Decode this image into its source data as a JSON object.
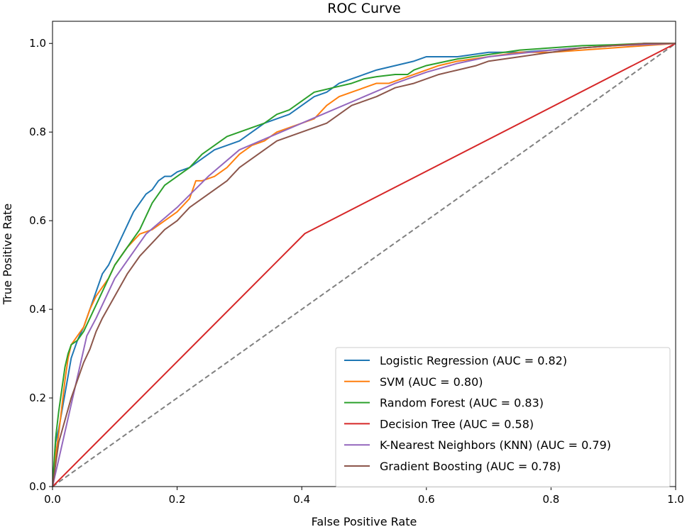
{
  "chart_data": {
    "type": "line",
    "title": "ROC Curve",
    "xlabel": "False Positive Rate",
    "ylabel": "True Positive Rate",
    "xlim": [
      0.0,
      1.0
    ],
    "ylim": [
      0.0,
      1.0
    ],
    "xticks": [
      "0.0",
      "0.2",
      "0.4",
      "0.6",
      "0.8",
      "1.0"
    ],
    "yticks": [
      "0.0",
      "0.2",
      "0.4",
      "0.6",
      "0.8",
      "1.0"
    ],
    "grid": false,
    "legend_position": "bottom-right",
    "series": [
      {
        "name": "Logistic Regression (AUC = 0.82)",
        "color": "#1f77b4",
        "dash": "solid",
        "x": [
          0.0,
          0.005,
          0.01,
          0.015,
          0.02,
          0.025,
          0.03,
          0.035,
          0.04,
          0.05,
          0.06,
          0.07,
          0.08,
          0.09,
          0.1,
          0.11,
          0.12,
          0.13,
          0.14,
          0.15,
          0.16,
          0.17,
          0.18,
          0.19,
          0.2,
          0.22,
          0.24,
          0.26,
          0.28,
          0.3,
          0.32,
          0.34,
          0.36,
          0.38,
          0.4,
          0.42,
          0.44,
          0.46,
          0.48,
          0.5,
          0.52,
          0.55,
          0.58,
          0.6,
          0.62,
          0.65,
          0.7,
          0.75,
          0.8,
          0.85,
          0.9,
          0.95,
          1.0
        ],
        "y": [
          0.0,
          0.1,
          0.13,
          0.17,
          0.21,
          0.25,
          0.29,
          0.31,
          0.33,
          0.36,
          0.4,
          0.44,
          0.48,
          0.5,
          0.53,
          0.56,
          0.59,
          0.62,
          0.64,
          0.66,
          0.67,
          0.69,
          0.7,
          0.7,
          0.71,
          0.72,
          0.74,
          0.76,
          0.77,
          0.78,
          0.8,
          0.82,
          0.83,
          0.84,
          0.86,
          0.88,
          0.89,
          0.91,
          0.92,
          0.93,
          0.94,
          0.95,
          0.96,
          0.97,
          0.97,
          0.97,
          0.98,
          0.98,
          0.985,
          0.99,
          0.995,
          1.0,
          1.0
        ]
      },
      {
        "name": "SVM (AUC = 0.80)",
        "color": "#ff7f0e",
        "dash": "solid",
        "x": [
          0.0,
          0.005,
          0.01,
          0.015,
          0.02,
          0.025,
          0.03,
          0.04,
          0.05,
          0.06,
          0.07,
          0.08,
          0.09,
          0.1,
          0.12,
          0.14,
          0.16,
          0.18,
          0.2,
          0.22,
          0.23,
          0.24,
          0.26,
          0.28,
          0.3,
          0.32,
          0.34,
          0.36,
          0.38,
          0.4,
          0.42,
          0.44,
          0.46,
          0.48,
          0.5,
          0.52,
          0.54,
          0.56,
          0.58,
          0.6,
          0.62,
          0.65,
          0.7,
          0.75,
          0.8,
          0.85,
          0.9,
          0.95,
          1.0
        ],
        "y": [
          0.0,
          0.07,
          0.12,
          0.18,
          0.24,
          0.29,
          0.32,
          0.34,
          0.36,
          0.4,
          0.43,
          0.45,
          0.47,
          0.5,
          0.54,
          0.57,
          0.58,
          0.6,
          0.62,
          0.65,
          0.69,
          0.69,
          0.7,
          0.72,
          0.75,
          0.77,
          0.78,
          0.8,
          0.81,
          0.82,
          0.83,
          0.86,
          0.88,
          0.89,
          0.9,
          0.91,
          0.91,
          0.92,
          0.93,
          0.94,
          0.95,
          0.96,
          0.97,
          0.98,
          0.98,
          0.985,
          0.99,
          0.995,
          1.0
        ]
      },
      {
        "name": "Random Forest (AUC = 0.83)",
        "color": "#2ca02c",
        "dash": "solid",
        "x": [
          0.0,
          0.005,
          0.01,
          0.015,
          0.02,
          0.025,
          0.03,
          0.04,
          0.05,
          0.06,
          0.07,
          0.08,
          0.1,
          0.12,
          0.14,
          0.16,
          0.18,
          0.2,
          0.22,
          0.24,
          0.26,
          0.28,
          0.3,
          0.32,
          0.34,
          0.36,
          0.38,
          0.4,
          0.42,
          0.45,
          0.48,
          0.5,
          0.52,
          0.55,
          0.57,
          0.58,
          0.6,
          0.65,
          0.7,
          0.75,
          0.8,
          0.85,
          0.9,
          0.95,
          1.0
        ],
        "y": [
          0.0,
          0.11,
          0.17,
          0.22,
          0.27,
          0.3,
          0.32,
          0.33,
          0.35,
          0.38,
          0.41,
          0.44,
          0.5,
          0.54,
          0.58,
          0.64,
          0.68,
          0.7,
          0.72,
          0.75,
          0.77,
          0.79,
          0.8,
          0.81,
          0.82,
          0.84,
          0.85,
          0.87,
          0.89,
          0.9,
          0.91,
          0.92,
          0.925,
          0.93,
          0.93,
          0.94,
          0.95,
          0.965,
          0.975,
          0.985,
          0.99,
          0.995,
          0.997,
          1.0,
          1.0
        ]
      },
      {
        "name": "Decision Tree (AUC = 0.58)",
        "color": "#d62728",
        "dash": "solid",
        "x": [
          0.0,
          0.405,
          1.0
        ],
        "y": [
          0.0,
          0.571,
          1.0
        ]
      },
      {
        "name": "K-Nearest Neighbors (KNN) (AUC = 0.79)",
        "color": "#9467bd",
        "dash": "solid",
        "x": [
          0.0,
          0.055,
          0.07,
          0.1,
          0.15,
          0.2,
          0.25,
          0.3,
          0.35,
          0.4,
          0.45,
          0.5,
          0.55,
          0.6,
          0.65,
          0.7,
          0.8,
          0.9,
          1.0
        ],
        "y": [
          0.0,
          0.34,
          0.38,
          0.47,
          0.57,
          0.63,
          0.7,
          0.76,
          0.79,
          0.82,
          0.85,
          0.88,
          0.91,
          0.935,
          0.955,
          0.97,
          0.985,
          0.995,
          1.0
        ]
      },
      {
        "name": "Gradient Boosting (AUC = 0.78)",
        "color": "#8c564b",
        "dash": "solid",
        "x": [
          0.0,
          0.01,
          0.02,
          0.03,
          0.04,
          0.05,
          0.06,
          0.07,
          0.08,
          0.1,
          0.12,
          0.14,
          0.16,
          0.18,
          0.2,
          0.22,
          0.24,
          0.26,
          0.28,
          0.3,
          0.32,
          0.34,
          0.36,
          0.38,
          0.4,
          0.42,
          0.44,
          0.46,
          0.48,
          0.5,
          0.52,
          0.55,
          0.58,
          0.6,
          0.62,
          0.65,
          0.68,
          0.7,
          0.75,
          0.8,
          0.85,
          0.9,
          0.95,
          1.0
        ],
        "y": [
          0.0,
          0.1,
          0.15,
          0.2,
          0.24,
          0.28,
          0.31,
          0.35,
          0.38,
          0.43,
          0.48,
          0.52,
          0.55,
          0.58,
          0.6,
          0.63,
          0.65,
          0.67,
          0.69,
          0.72,
          0.74,
          0.76,
          0.78,
          0.79,
          0.8,
          0.81,
          0.82,
          0.84,
          0.86,
          0.87,
          0.88,
          0.9,
          0.91,
          0.92,
          0.93,
          0.94,
          0.95,
          0.96,
          0.97,
          0.98,
          0.99,
          0.995,
          1.0,
          1.0
        ]
      },
      {
        "name": "",
        "color": "#808080",
        "dash": "dashed",
        "x": [
          0.0,
          1.0
        ],
        "y": [
          0.0,
          1.0
        ]
      }
    ]
  }
}
